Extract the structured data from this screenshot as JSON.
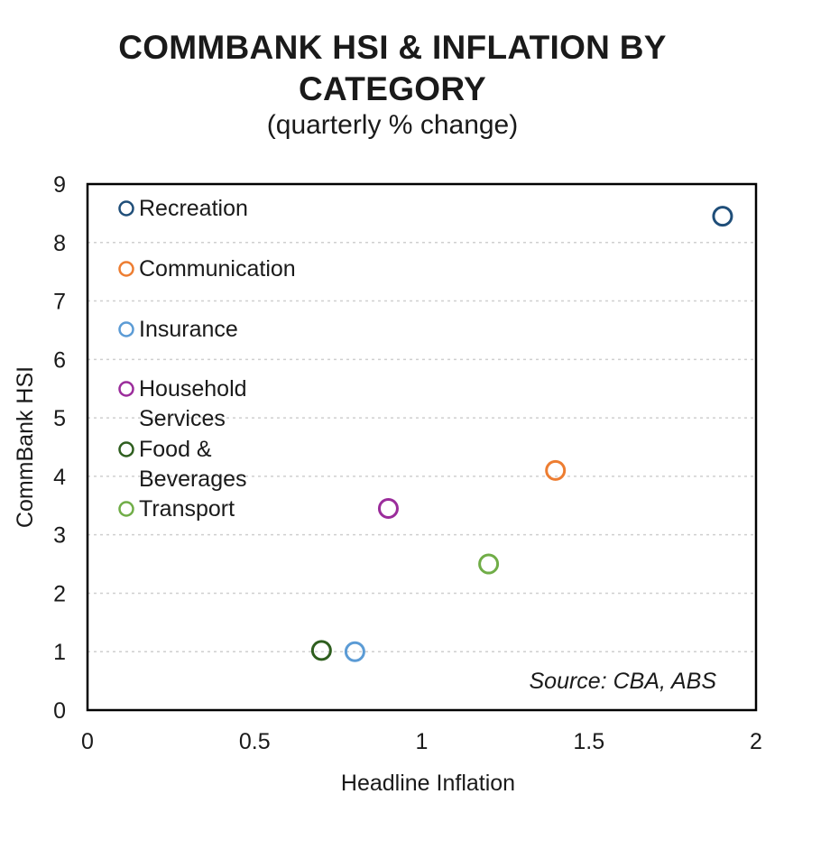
{
  "chart_data": {
    "type": "scatter",
    "title": "COMMBANK HSI & INFLATION BY CATEGORY",
    "title_lines": [
      "COMMBANK HSI & INFLATION BY",
      "CATEGORY"
    ],
    "subtitle": "(quarterly % change)",
    "xlabel": "Headline Inflation",
    "ylabel": "CommBank HSI",
    "xlim": [
      0,
      2
    ],
    "ylim": [
      0,
      9
    ],
    "x_ticks": [
      "0",
      "0.5",
      "1",
      "1.5",
      "2"
    ],
    "y_ticks": [
      "0",
      "1",
      "2",
      "3",
      "4",
      "5",
      "6",
      "7",
      "8",
      "9"
    ],
    "grid": "horizontal dashed",
    "legend_position": "top-left inside",
    "annotation": "Source: CBA, ABS",
    "series": [
      {
        "name": "Recreation",
        "label_lines": [
          "Recreation"
        ],
        "color": "#1f4e79",
        "x": [
          1.9
        ],
        "y": [
          8.45
        ]
      },
      {
        "name": "Communication",
        "label_lines": [
          "Communication"
        ],
        "color": "#ed7d31",
        "x": [
          1.4
        ],
        "y": [
          4.1
        ]
      },
      {
        "name": "Insurance",
        "label_lines": [
          "Insurance"
        ],
        "color": "#5b9bd5",
        "x": [
          0.8
        ],
        "y": [
          1.0
        ]
      },
      {
        "name": "Household Services",
        "label_lines": [
          "Household",
          "Services"
        ],
        "color": "#9b2c9b",
        "x": [
          0.9
        ],
        "y": [
          3.45
        ]
      },
      {
        "name": "Food & Beverages",
        "label_lines": [
          "Food &",
          "Beverages"
        ],
        "color": "#2e5e1e",
        "x": [
          0.7
        ],
        "y": [
          1.02
        ]
      },
      {
        "name": "Transport",
        "label_lines": [
          "Transport"
        ],
        "color": "#70ad47",
        "x": [
          1.2
        ],
        "y": [
          2.5
        ]
      }
    ]
  }
}
